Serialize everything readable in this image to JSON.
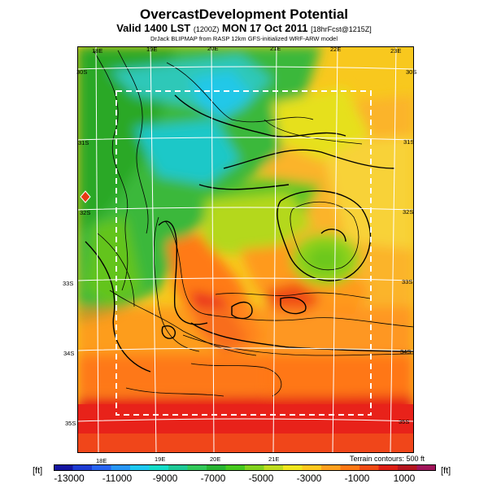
{
  "header": {
    "title": "OvercastDevelopment Potential",
    "subtitle_main": "Valid 1400 LST",
    "subtitle_code": "(1200Z)",
    "subtitle_date": "MON 17 Oct 2011",
    "subtitle_run": "[18hrFcst@1215Z]",
    "credit": "DrJack BLIPMAP from RASP 12km GFS-initialized WRF-ARW model"
  },
  "map": {
    "lon_labels_top": [
      "18E",
      "19E",
      "20E",
      "21E",
      "22E",
      "23E"
    ],
    "lon_labels_bottom": [
      "18E",
      "19E",
      "20E",
      "21E"
    ],
    "lat_labels_left": [
      "30S",
      "31S",
      "32S",
      "33S",
      "34S",
      "35S"
    ],
    "lat_labels_right": [
      "30S",
      "31S",
      "32S",
      "33S",
      "34S",
      "35S"
    ],
    "terrain_note": "Terrain contours: 500 ft",
    "domain_box": "dashed white rectangle",
    "colors": {
      "ocean_south": "#e8201a",
      "grid_lines": "#ffffff",
      "contours": "#000000"
    }
  },
  "colorbar": {
    "unit_left": "[ft]",
    "unit_right": "[ft]",
    "tick_labels": [
      "-13000",
      "-11000",
      "-9000",
      "-7000",
      "-5000",
      "-3000",
      "-1000",
      "1000"
    ],
    "tick_values": [
      -13000,
      -11000,
      -9000,
      -7000,
      -5000,
      -3000,
      -1000,
      1000
    ],
    "range": [
      -14000,
      2000
    ],
    "colors": [
      "#1414a0",
      "#1e3cd2",
      "#2864f0",
      "#2896f5",
      "#1ec8f0",
      "#14dcc8",
      "#1ec896",
      "#32c85a",
      "#28b432",
      "#46c81e",
      "#82d21e",
      "#bedc1e",
      "#f0e61e",
      "#ffc81e",
      "#ffa01e",
      "#ff7814",
      "#f04b14",
      "#dc1e14",
      "#b4141e",
      "#a0145a"
    ]
  }
}
